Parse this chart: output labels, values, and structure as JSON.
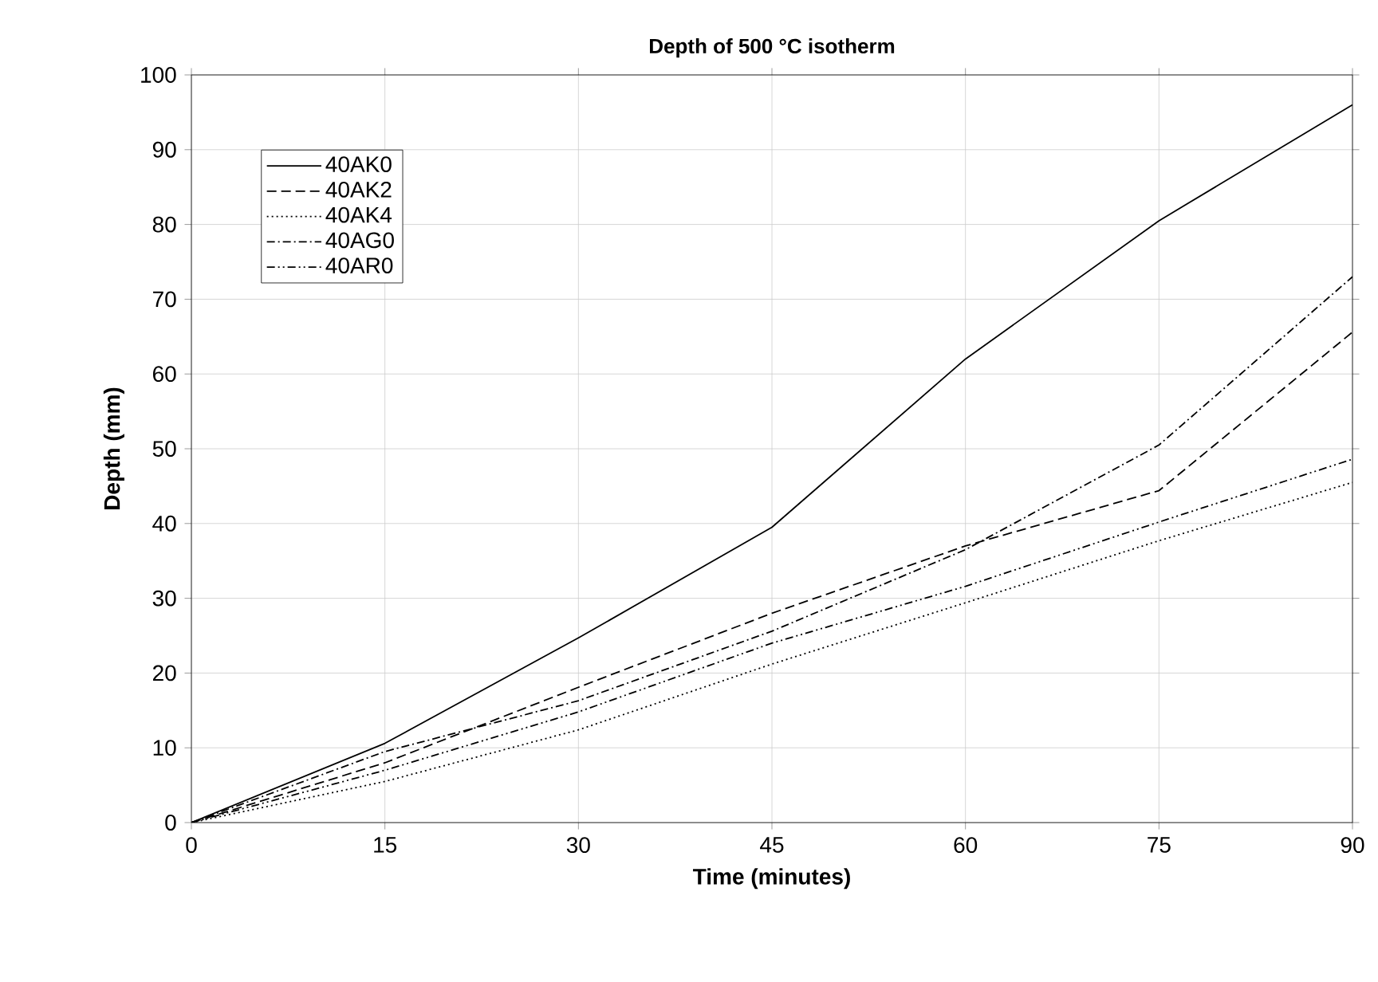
{
  "chart_data": {
    "type": "line",
    "title": "Depth of 500 °C isotherm",
    "xlabel": "Time (minutes)",
    "ylabel": "Depth (mm)",
    "x": [
      0,
      15,
      30,
      45,
      60,
      75,
      90
    ],
    "series": [
      {
        "name": "40AK0",
        "color": "#000000",
        "line_style": "solid",
        "values": [
          0,
          10.6,
          24.7,
          39.5,
          62,
          80.5,
          96
        ]
      },
      {
        "name": "40AK2",
        "color": "#000000",
        "line_style": "dashed",
        "values": [
          0,
          8,
          18.1,
          28,
          37,
          44.4,
          65.6
        ]
      },
      {
        "name": "40AK4",
        "color": "#000000",
        "line_style": "dotted",
        "values": [
          0,
          5.5,
          12.4,
          21.2,
          29.4,
          37.7,
          45.5
        ]
      },
      {
        "name": "40AG0",
        "color": "#000000",
        "line_style": "dashdot",
        "values": [
          0,
          9.5,
          16.3,
          25.6,
          36.5,
          50.5,
          73
        ]
      },
      {
        "name": "40AR0",
        "color": "#000000",
        "line_style": "dashdotdot",
        "values": [
          0,
          7,
          14.8,
          24,
          31.6,
          40.2,
          48.6
        ]
      }
    ],
    "xlim": [
      0,
      90
    ],
    "ylim": [
      0,
      100
    ],
    "xticks": [
      0,
      15,
      30,
      45,
      60,
      75,
      90
    ],
    "yticks": [
      0,
      10,
      20,
      30,
      40,
      50,
      60,
      70,
      80,
      90,
      100
    ],
    "grid": true,
    "legend": "top left",
    "marker": "none"
  }
}
